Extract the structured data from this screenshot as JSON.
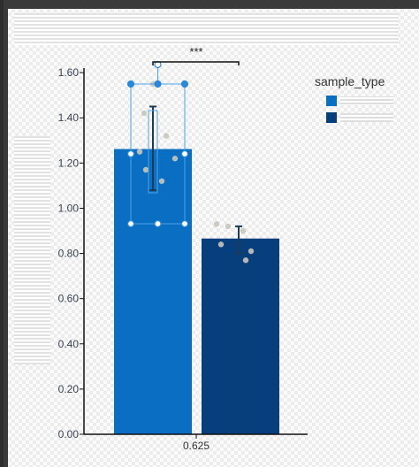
{
  "chart_data": {
    "type": "bar",
    "categories": [
      "0.625"
    ],
    "series": [
      {
        "color": "#0a6fc2",
        "value": 1.262,
        "error": [
          1.08,
          1.45
        ],
        "points": [
          1.55,
          1.42,
          1.32,
          1.25,
          1.22,
          1.17,
          1.12
        ]
      },
      {
        "color": "#063f7c",
        "value": 0.866,
        "error": [
          0.8,
          0.92
        ],
        "points": [
          0.93,
          0.92,
          0.9,
          0.84,
          0.81,
          0.77
        ]
      }
    ],
    "yticks": [
      "0.00",
      "0.20",
      "0.40",
      "0.60",
      "0.80",
      "1.00",
      "1.20",
      "1.40",
      "1.60"
    ],
    "ylim": [
      0,
      1.62
    ],
    "significance": "***",
    "legend": {
      "title": "sample_type",
      "placement": "top-right"
    },
    "xlabel": "",
    "ylabel": "",
    "title": "",
    "grid": true
  }
}
